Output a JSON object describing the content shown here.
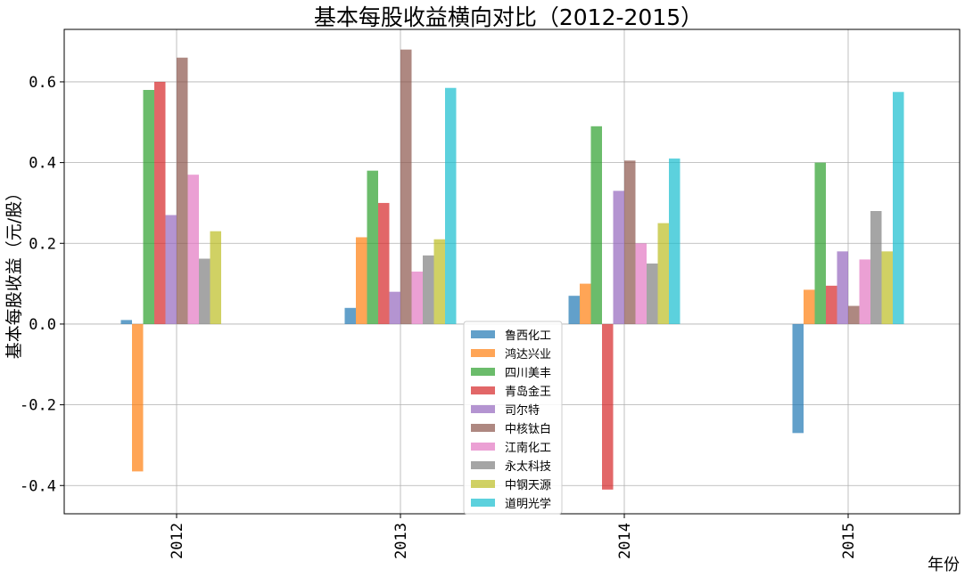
{
  "chart_data": {
    "type": "bar",
    "title": "基本每股收益横向对比（2012-2015）",
    "xlabel": "年份",
    "ylabel": "基本每股收益（元/股）",
    "categories": [
      "2012",
      "2013",
      "2014",
      "2015"
    ],
    "ylim": [
      -0.47,
      0.73
    ],
    "yticks": [
      "0.6",
      "0.4",
      "0.2",
      "0.0",
      "-0.2",
      "-0.4"
    ],
    "ytick_values": [
      0.6,
      0.4,
      0.2,
      0.0,
      -0.2,
      -0.4
    ],
    "grid": true,
    "legend_position": "bottom-center",
    "series": [
      {
        "name": "鲁西化工",
        "color": "#1f77b4",
        "values": [
          0.01,
          0.04,
          0.07,
          -0.27
        ]
      },
      {
        "name": "鸿达兴业",
        "color": "#ff7f0e",
        "values": [
          -0.365,
          0.215,
          0.1,
          0.085
        ]
      },
      {
        "name": "四川美丰",
        "color": "#2ca02c",
        "values": [
          0.58,
          0.38,
          0.49,
          0.4
        ]
      },
      {
        "name": "青岛金王",
        "color": "#d62728",
        "values": [
          0.6,
          0.3,
          -0.41,
          0.095
        ]
      },
      {
        "name": "司尔特",
        "color": "#9467bd",
        "values": [
          0.27,
          0.08,
          0.33,
          0.18
        ]
      },
      {
        "name": "中核钛白",
        "color": "#8c564b",
        "values": [
          0.66,
          0.68,
          0.405,
          0.045
        ]
      },
      {
        "name": "江南化工",
        "color": "#e377c2",
        "values": [
          0.37,
          0.13,
          0.2,
          0.16
        ]
      },
      {
        "name": "永太科技",
        "color": "#7f7f7f",
        "values": [
          0.162,
          0.17,
          0.15,
          0.28
        ]
      },
      {
        "name": "中钢天源",
        "color": "#bcbd22",
        "values": [
          0.23,
          0.21,
          0.25,
          0.18
        ]
      },
      {
        "name": "道明光学",
        "color": "#17becf",
        "values": [
          null,
          0.585,
          0.41,
          0.575
        ]
      }
    ]
  }
}
